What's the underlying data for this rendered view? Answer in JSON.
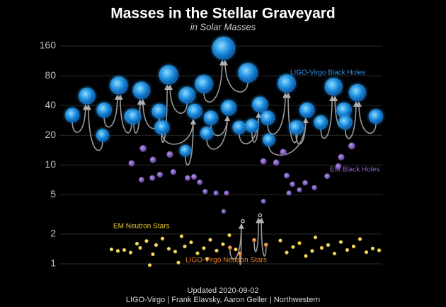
{
  "chart_data": {
    "type": "scatter",
    "title": "Masses in the Stellar Graveyard",
    "subtitle": "in Solar Masses",
    "footer": [
      "Updated 2020-09-02",
      "LIGO-Virgo | Frank Elavsky, Aaron Geller | Northwestern"
    ],
    "log_y": true,
    "grid": true,
    "xlim": [
      0,
      100
    ],
    "ylim": [
      0.82,
      205
    ],
    "yticks": [
      1,
      2,
      5,
      10,
      20,
      40,
      80,
      160
    ],
    "series": [
      {
        "name": "LIGO-Virgo Black Holes",
        "color": "#1e8fe0",
        "x": [
          2.7,
          12.2,
          7.3,
          12.7,
          21.3,
          17.3,
          22,
          30,
          24.4,
          30.7,
          38.7,
          32.9,
          44,
          57.8,
          50.2,
          44.9,
          46.2,
          51.8,
          55.1,
          59.1,
          61.6,
          64,
          73.3,
          70,
          64.4,
          72.9,
          76.4,
          80.7,
          88,
          84.7,
          88.4,
          98,
          92.2,
          31,
          38.2,
          41.1
        ],
        "values": [
          32,
          20,
          50,
          36,
          31,
          64,
          31,
          35,
          57,
          24,
          51,
          82,
          66,
          86,
          152,
          21,
          30,
          38,
          24,
          25,
          41,
          30,
          24,
          67,
          18,
          24,
          36,
          27,
          36,
          62,
          27,
          31,
          54,
          24,
          14,
          35
        ]
      },
      {
        "name": "EM Black Holes",
        "color": "#7e57c2",
        "x": [
          21.3,
          24.9,
          28,
          33.3,
          30.2,
          24.4,
          27.8,
          34.4,
          38.9,
          40.9,
          42.7,
          44.4,
          47.8,
          51.1,
          62.7,
          66.7,
          68.9,
          70,
          71.8,
          70.7,
          74,
          75.8,
          78.7,
          82.7,
          86.2,
          87.1,
          90.4,
          62.7,
          50.2
        ],
        "values": [
          10.4,
          14.7,
          11.3,
          12.8,
          8,
          7.1,
          7.4,
          8.5,
          7.4,
          7.6,
          6.7,
          5.4,
          5.2,
          5.2,
          10.9,
          10.6,
          13.5,
          7.8,
          6.4,
          5.2,
          5.6,
          6.6,
          5.9,
          7.7,
          9.7,
          12,
          15.6,
          4.3,
          3.4
        ]
      },
      {
        "name": "EM Neutron Stars",
        "color": "#f2d43a",
        "x": [
          15,
          17,
          19,
          21,
          23,
          24,
          26,
          28,
          29,
          31,
          33,
          35,
          37,
          38,
          40,
          42,
          44,
          46,
          48,
          50,
          52,
          54,
          68,
          70,
          72,
          74,
          76,
          78,
          79,
          81,
          83,
          85,
          87,
          89,
          91,
          93,
          95,
          97,
          99,
          27,
          36,
          45
        ],
        "values": [
          1.4,
          1.35,
          1.38,
          1.3,
          1.6,
          1.45,
          1.7,
          1.25,
          1.55,
          1.8,
          1.42,
          1.33,
          1.9,
          1.5,
          1.65,
          1.28,
          1.44,
          1.75,
          1.36,
          1.58,
          1.95,
          1.4,
          1.72,
          1.3,
          1.48,
          1.62,
          1.2,
          1.35,
          1.85,
          1.45,
          1.55,
          1.27,
          1.66,
          1.38,
          1.5,
          1.78,
          1.31,
          1.43,
          1.37,
          0.97,
          1.03,
          1.12
        ]
      },
      {
        "name": "LIGO-Virgo Neutron Stars",
        "color": "#e8832a",
        "x": [
          52.2,
          55.3,
          56.2,
          59.8,
          63.5,
          61.6
        ],
        "values": [
          1.46,
          1.27,
          2.7,
          1.74,
          1.56,
          3.1
        ]
      }
    ]
  }
}
